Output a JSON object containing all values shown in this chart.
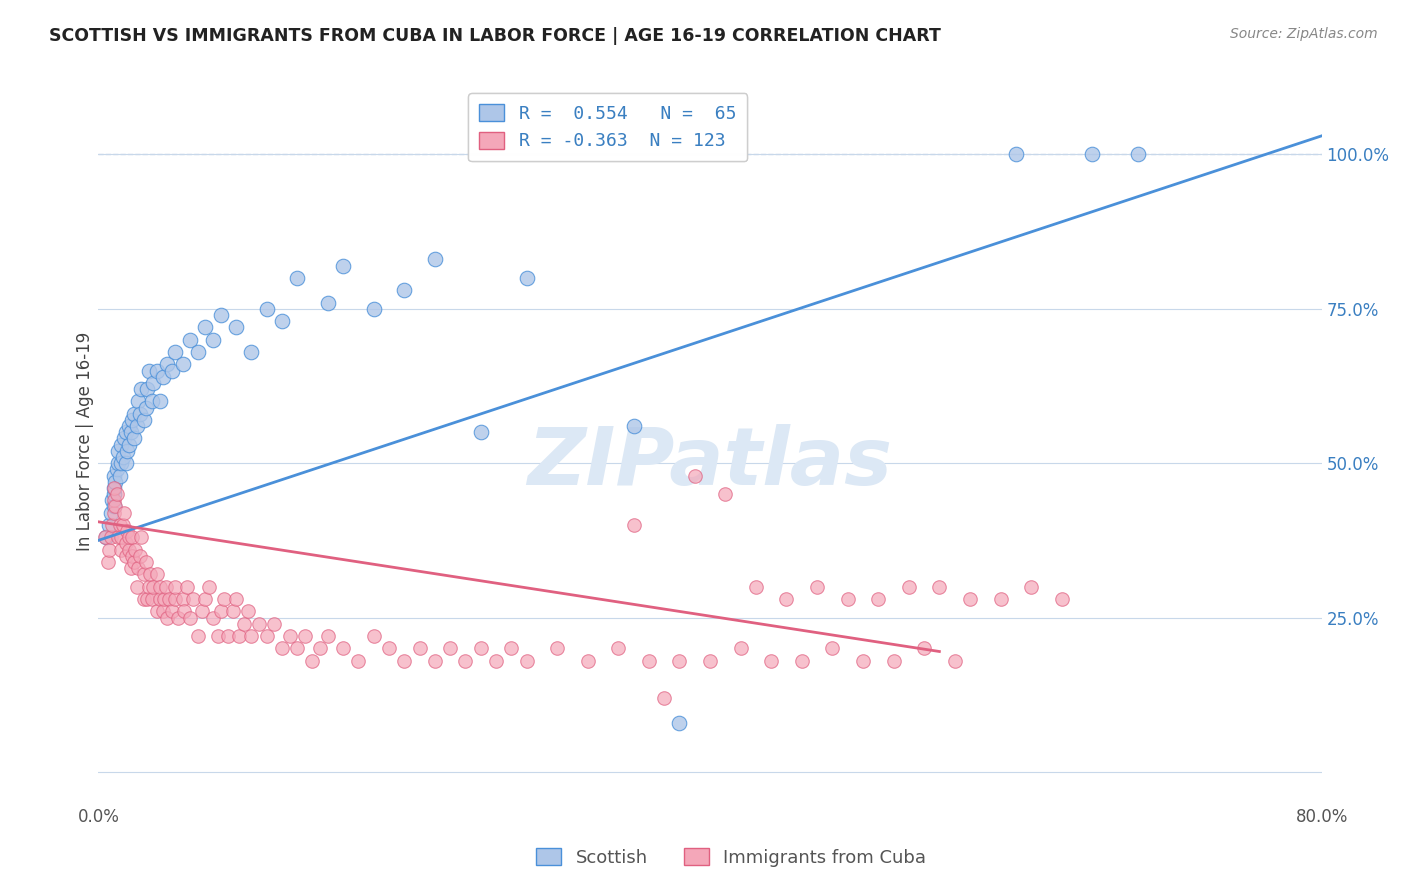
{
  "title": "SCOTTISH VS IMMIGRANTS FROM CUBA IN LABOR FORCE | AGE 16-19 CORRELATION CHART",
  "source": "Source: ZipAtlas.com",
  "ylabel": "In Labor Force | Age 16-19",
  "xlim": [
    0.0,
    0.8
  ],
  "ylim": [
    -0.05,
    1.12
  ],
  "blue_R": 0.554,
  "blue_N": 65,
  "pink_R": -0.363,
  "pink_N": 123,
  "blue_color": "#aec6e8",
  "pink_color": "#f4a7b9",
  "blue_line_color": "#4a90d9",
  "pink_line_color": "#e06080",
  "background_color": "#ffffff",
  "grid_color": "#c8d8ea",
  "legend_text_color": "#3a7fc1",
  "watermark_color": "#dce8f5",
  "blue_trend_x0": 0.0,
  "blue_trend_x1": 0.8,
  "blue_trend_y0": 0.375,
  "blue_trend_y1": 1.03,
  "pink_trend_x0": 0.0,
  "pink_trend_x1": 0.55,
  "pink_trend_y0": 0.405,
  "pink_trend_y1": 0.195,
  "blue_scatter_x": [
    0.005,
    0.007,
    0.008,
    0.009,
    0.01,
    0.01,
    0.01,
    0.01,
    0.011,
    0.012,
    0.013,
    0.013,
    0.014,
    0.015,
    0.015,
    0.016,
    0.017,
    0.018,
    0.018,
    0.019,
    0.02,
    0.02,
    0.021,
    0.022,
    0.023,
    0.023,
    0.025,
    0.026,
    0.027,
    0.028,
    0.03,
    0.031,
    0.032,
    0.033,
    0.035,
    0.036,
    0.038,
    0.04,
    0.042,
    0.045,
    0.048,
    0.05,
    0.055,
    0.06,
    0.065,
    0.07,
    0.075,
    0.08,
    0.09,
    0.1,
    0.11,
    0.12,
    0.13,
    0.15,
    0.16,
    0.18,
    0.2,
    0.22,
    0.25,
    0.28,
    0.35,
    0.38,
    0.6,
    0.65,
    0.68
  ],
  "blue_scatter_y": [
    0.38,
    0.4,
    0.42,
    0.44,
    0.43,
    0.45,
    0.46,
    0.48,
    0.47,
    0.49,
    0.5,
    0.52,
    0.48,
    0.5,
    0.53,
    0.51,
    0.54,
    0.5,
    0.55,
    0.52,
    0.53,
    0.56,
    0.55,
    0.57,
    0.54,
    0.58,
    0.56,
    0.6,
    0.58,
    0.62,
    0.57,
    0.59,
    0.62,
    0.65,
    0.6,
    0.63,
    0.65,
    0.6,
    0.64,
    0.66,
    0.65,
    0.68,
    0.66,
    0.7,
    0.68,
    0.72,
    0.7,
    0.74,
    0.72,
    0.68,
    0.75,
    0.73,
    0.8,
    0.76,
    0.82,
    0.75,
    0.78,
    0.83,
    0.55,
    0.8,
    0.56,
    0.08,
    1.0,
    1.0,
    1.0
  ],
  "pink_scatter_x": [
    0.004,
    0.006,
    0.007,
    0.008,
    0.009,
    0.01,
    0.01,
    0.01,
    0.011,
    0.012,
    0.013,
    0.014,
    0.015,
    0.015,
    0.016,
    0.017,
    0.018,
    0.018,
    0.019,
    0.02,
    0.02,
    0.021,
    0.022,
    0.022,
    0.023,
    0.024,
    0.025,
    0.026,
    0.027,
    0.028,
    0.03,
    0.03,
    0.031,
    0.032,
    0.033,
    0.034,
    0.035,
    0.036,
    0.038,
    0.038,
    0.04,
    0.04,
    0.042,
    0.043,
    0.044,
    0.045,
    0.046,
    0.048,
    0.05,
    0.05,
    0.052,
    0.055,
    0.056,
    0.058,
    0.06,
    0.062,
    0.065,
    0.068,
    0.07,
    0.072,
    0.075,
    0.078,
    0.08,
    0.082,
    0.085,
    0.088,
    0.09,
    0.092,
    0.095,
    0.098,
    0.1,
    0.105,
    0.11,
    0.115,
    0.12,
    0.125,
    0.13,
    0.135,
    0.14,
    0.145,
    0.15,
    0.16,
    0.17,
    0.18,
    0.19,
    0.2,
    0.21,
    0.22,
    0.23,
    0.24,
    0.25,
    0.26,
    0.27,
    0.28,
    0.3,
    0.32,
    0.34,
    0.36,
    0.38,
    0.4,
    0.42,
    0.44,
    0.46,
    0.48,
    0.5,
    0.52,
    0.54,
    0.56,
    0.35,
    0.37,
    0.39,
    0.41,
    0.43,
    0.45,
    0.47,
    0.49,
    0.51,
    0.53,
    0.55,
    0.57,
    0.59,
    0.61,
    0.63
  ],
  "pink_scatter_y": [
    0.38,
    0.34,
    0.36,
    0.38,
    0.4,
    0.42,
    0.44,
    0.46,
    0.43,
    0.45,
    0.38,
    0.4,
    0.36,
    0.38,
    0.4,
    0.42,
    0.35,
    0.37,
    0.39,
    0.36,
    0.38,
    0.33,
    0.35,
    0.38,
    0.34,
    0.36,
    0.3,
    0.33,
    0.35,
    0.38,
    0.28,
    0.32,
    0.34,
    0.28,
    0.3,
    0.32,
    0.28,
    0.3,
    0.26,
    0.32,
    0.28,
    0.3,
    0.26,
    0.28,
    0.3,
    0.25,
    0.28,
    0.26,
    0.28,
    0.3,
    0.25,
    0.28,
    0.26,
    0.3,
    0.25,
    0.28,
    0.22,
    0.26,
    0.28,
    0.3,
    0.25,
    0.22,
    0.26,
    0.28,
    0.22,
    0.26,
    0.28,
    0.22,
    0.24,
    0.26,
    0.22,
    0.24,
    0.22,
    0.24,
    0.2,
    0.22,
    0.2,
    0.22,
    0.18,
    0.2,
    0.22,
    0.2,
    0.18,
    0.22,
    0.2,
    0.18,
    0.2,
    0.18,
    0.2,
    0.18,
    0.2,
    0.18,
    0.2,
    0.18,
    0.2,
    0.18,
    0.2,
    0.18,
    0.18,
    0.18,
    0.2,
    0.18,
    0.18,
    0.2,
    0.18,
    0.18,
    0.2,
    0.18,
    0.4,
    0.12,
    0.48,
    0.45,
    0.3,
    0.28,
    0.3,
    0.28,
    0.28,
    0.3,
    0.3,
    0.28,
    0.28,
    0.3,
    0.28
  ]
}
